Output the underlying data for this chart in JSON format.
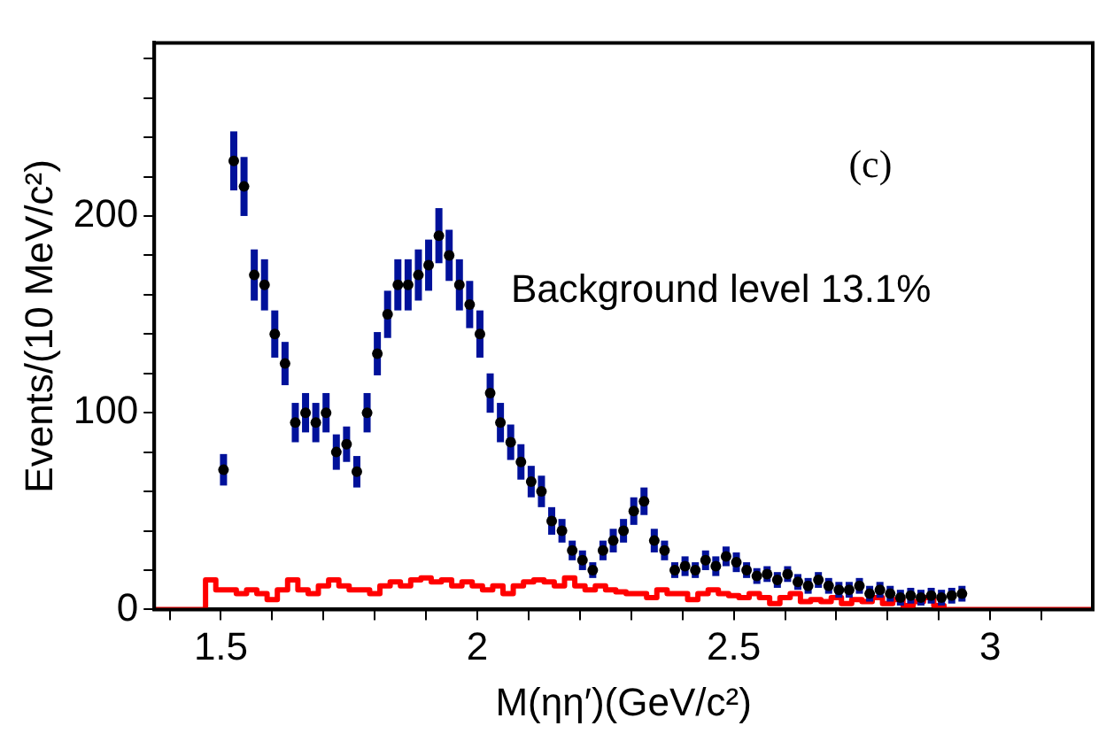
{
  "chart_data": {
    "type": "scatter",
    "xlabel": "M(ηη′)(GeV/c²)",
    "ylabel": "Events/(10 MeV/c²)",
    "annotations": [
      "(c)",
      "Background level 13.1%"
    ],
    "xlim": [
      1.37,
      3.2
    ],
    "xticks": [
      {
        "value": 1.4,
        "label": null
      },
      1.5,
      {
        "value": 1.6,
        "label": null
      },
      {
        "value": 1.7,
        "label": null
      },
      {
        "value": 1.8,
        "label": null
      },
      {
        "value": 1.9,
        "label": null
      },
      2,
      {
        "value": 2.1,
        "label": null
      },
      {
        "value": 2.2,
        "label": null
      },
      {
        "value": 2.3,
        "label": null
      },
      {
        "value": 2.4,
        "label": null
      },
      2.5,
      {
        "value": 2.6,
        "label": null
      },
      {
        "value": 2.7,
        "label": null
      },
      {
        "value": 2.8,
        "label": null
      },
      {
        "value": 2.9,
        "label": null
      },
      3,
      {
        "value": 3.1,
        "label": null
      }
    ],
    "ylim": [
      0,
      288
    ],
    "yticks": [
      0,
      {
        "value": 20,
        "label": null
      },
      {
        "value": 40,
        "label": null
      },
      {
        "value": 60,
        "label": null
      },
      {
        "value": 80,
        "label": null
      },
      100,
      {
        "value": 120,
        "label": null
      },
      {
        "value": 140,
        "label": null
      },
      {
        "value": 160,
        "label": null
      },
      {
        "value": 180,
        "label": null
      },
      200,
      {
        "value": 220,
        "label": null
      },
      {
        "value": 240,
        "label": null
      },
      {
        "value": 260,
        "label": null
      },
      {
        "value": 280,
        "label": null
      }
    ],
    "grid": false,
    "legend": false,
    "series": [
      {
        "type": "step",
        "color": "#ff0000",
        "x": [
          1.37,
          1.47,
          1.49,
          1.51,
          1.53,
          1.55,
          1.57,
          1.59,
          1.61,
          1.63,
          1.65,
          1.67,
          1.69,
          1.71,
          1.73,
          1.75,
          1.77,
          1.79,
          1.81,
          1.83,
          1.85,
          1.87,
          1.89,
          1.91,
          1.93,
          1.95,
          1.97,
          1.99,
          2.01,
          2.03,
          2.05,
          2.07,
          2.09,
          2.11,
          2.13,
          2.15,
          2.17,
          2.19,
          2.21,
          2.23,
          2.25,
          2.27,
          2.29,
          2.31,
          2.33,
          2.35,
          2.37,
          2.39,
          2.41,
          2.43,
          2.45,
          2.47,
          2.49,
          2.51,
          2.53,
          2.55,
          2.57,
          2.59,
          2.61,
          2.63,
          2.65,
          2.67,
          2.69,
          2.71,
          2.73,
          2.75,
          2.77,
          2.79,
          2.81,
          2.83,
          2.85,
          2.87,
          2.89,
          2.91,
          3.2
        ],
        "values": [
          0,
          15,
          10,
          10,
          8,
          10,
          8,
          5,
          10,
          15,
          10,
          8,
          12,
          15,
          12,
          10,
          10,
          8,
          12,
          14,
          12,
          15,
          16,
          14,
          15,
          12,
          14,
          12,
          10,
          12,
          8,
          12,
          14,
          15,
          14,
          12,
          16,
          12,
          10,
          12,
          10,
          9,
          8,
          8,
          6,
          10,
          8,
          8,
          5,
          8,
          10,
          8,
          7,
          6,
          8,
          6,
          3,
          6,
          8,
          4,
          5,
          4,
          6,
          3,
          5,
          4,
          6,
          3,
          5,
          2,
          4,
          6,
          2,
          0,
          0
        ]
      },
      {
        "color": "#000000",
        "marker": "circle",
        "x": [
          1.505,
          1.525,
          1.545,
          1.565,
          1.585,
          1.605,
          1.625,
          1.645,
          1.665,
          1.685,
          1.705,
          1.725,
          1.745,
          1.765,
          1.785,
          1.805,
          1.825,
          1.845,
          1.865,
          1.885,
          1.905,
          1.925,
          1.945,
          1.965,
          1.985,
          2.005,
          2.025,
          2.045,
          2.065,
          2.085,
          2.105,
          2.125,
          2.145,
          2.165,
          2.185,
          2.205,
          2.225,
          2.245,
          2.265,
          2.285,
          2.305,
          2.325,
          2.345,
          2.365,
          2.385,
          2.405,
          2.425,
          2.445,
          2.465,
          2.485,
          2.505,
          2.525,
          2.545,
          2.565,
          2.585,
          2.605,
          2.625,
          2.645,
          2.665,
          2.685,
          2.705,
          2.725,
          2.745,
          2.765,
          2.785,
          2.805,
          2.825,
          2.845,
          2.865,
          2.885,
          2.905,
          2.925,
          2.945
        ],
        "values": [
          71,
          228,
          215,
          170,
          165,
          140,
          125,
          95,
          100,
          95,
          100,
          80,
          84,
          70,
          100,
          130,
          150,
          165,
          165,
          170,
          175,
          190,
          180,
          165,
          155,
          140,
          110,
          95,
          85,
          75,
          65,
          60,
          45,
          40,
          30,
          25,
          20,
          30,
          35,
          40,
          50,
          55,
          35,
          30,
          20,
          22,
          20,
          25,
          22,
          27,
          24,
          20,
          17,
          18,
          15,
          18,
          14,
          12,
          15,
          12,
          10,
          10,
          12,
          8,
          10,
          8,
          6,
          7,
          6,
          7,
          6,
          7,
          8
        ],
        "errors": [
          8,
          15,
          15,
          13,
          13,
          12,
          11,
          10,
          10,
          10,
          10,
          9,
          9,
          8,
          10,
          11,
          12,
          13,
          13,
          13,
          13,
          14,
          13,
          13,
          12,
          12,
          10,
          10,
          9,
          9,
          8,
          8,
          7,
          6,
          5,
          5,
          4,
          5,
          6,
          6,
          7,
          7,
          6,
          5,
          4,
          5,
          4,
          5,
          5,
          5,
          5,
          4,
          4,
          4,
          4,
          4,
          4,
          4,
          4,
          4,
          4,
          4,
          4,
          4,
          4,
          4,
          4,
          4,
          4,
          4,
          4,
          4,
          4
        ]
      }
    ]
  }
}
